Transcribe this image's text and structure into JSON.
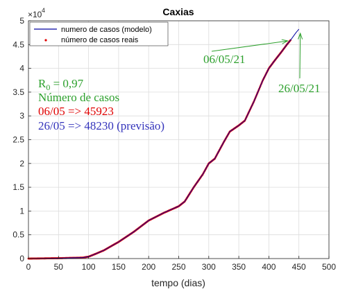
{
  "chart_data": {
    "type": "line",
    "title": "Caxias",
    "xlabel": "tempo (dias)",
    "ylabel": "",
    "xlim": [
      0,
      500
    ],
    "ylim": [
      0,
      50000
    ],
    "xticks": [
      0,
      50,
      100,
      150,
      200,
      250,
      300,
      350,
      400,
      450,
      500
    ],
    "yticks": [
      0,
      5000,
      10000,
      15000,
      20000,
      25000,
      30000,
      35000,
      40000,
      45000,
      50000
    ],
    "ytick_labels": [
      "0",
      "0.5",
      "1",
      "1.5",
      "2",
      "2.5",
      "3",
      "3.5",
      "4",
      "4.5",
      "5"
    ],
    "y_exponent": {
      "base": "×10",
      "power": "4"
    },
    "grid": true,
    "legend_position": "top-left",
    "series": [
      {
        "name": "numero de casos (modelo)",
        "color": "#0000a0",
        "style": "line",
        "x": [
          0,
          50,
          90,
          100,
          110,
          125,
          150,
          175,
          200,
          225,
          250,
          260,
          275,
          290,
          300,
          310,
          325,
          335,
          350,
          360,
          375,
          390,
          400,
          410,
          420,
          430,
          436,
          440,
          445,
          450
        ],
        "y": [
          0,
          80,
          200,
          400,
          900,
          1700,
          3500,
          5600,
          8000,
          9600,
          11000,
          12000,
          15000,
          17700,
          20000,
          21000,
          24500,
          26700,
          28000,
          29000,
          33000,
          37500,
          40000,
          41700,
          43300,
          45000,
          45900,
          46600,
          47500,
          48230
        ]
      },
      {
        "name": "número de casos reais",
        "color": "#e00000",
        "style": "markers",
        "x": [
          0,
          50,
          90,
          100,
          110,
          125,
          150,
          175,
          200,
          225,
          250,
          260,
          275,
          290,
          300,
          310,
          325,
          335,
          350,
          360,
          375,
          390,
          400,
          410,
          420,
          430,
          436
        ],
        "y": [
          0,
          80,
          200,
          400,
          900,
          1700,
          3500,
          5600,
          8000,
          9600,
          11000,
          12000,
          15000,
          17700,
          20000,
          21000,
          24500,
          26700,
          28000,
          29000,
          33000,
          37500,
          40000,
          41700,
          43300,
          45000,
          45923
        ]
      }
    ],
    "annotations": [
      {
        "text": "06/05/21",
        "color": "#2ca02c",
        "arrow_to": [
          436,
          45923
        ]
      },
      {
        "text": "26/05/21",
        "color": "#2ca02c",
        "arrow_to": [
          450,
          48230
        ]
      }
    ]
  },
  "text_block": {
    "r0_main": "R",
    "r0_sub": "0",
    "r0_value": " = 0,97",
    "heading": "Número de casos",
    "line_real": "06/05 => 45923",
    "line_pred": "26/05 => 48230 (previsão)",
    "colors": {
      "green": "#2ca02c",
      "red": "#e00000",
      "blue": "#3333bb"
    }
  }
}
